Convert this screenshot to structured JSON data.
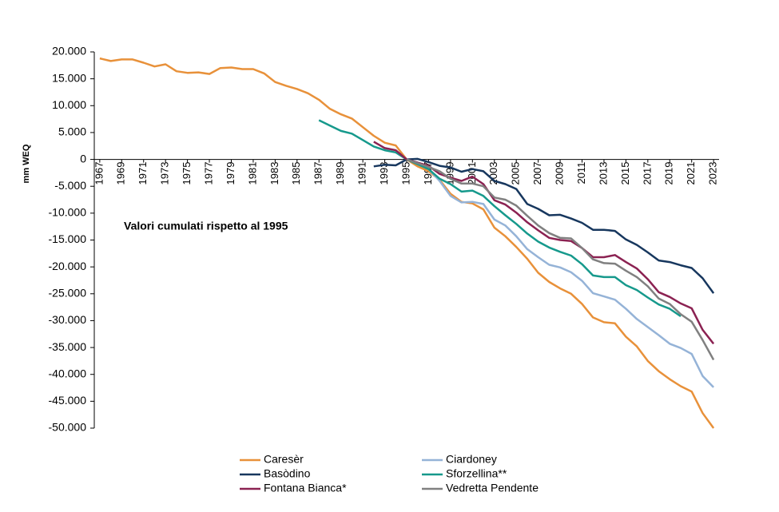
{
  "chart_data": {
    "type": "line",
    "annotation": "Valori cumulati rispetto al 1995",
    "y_label": "mm WEQ",
    "x": [
      1967,
      1968,
      1969,
      1970,
      1971,
      1972,
      1973,
      1974,
      1975,
      1976,
      1977,
      1978,
      1979,
      1980,
      1981,
      1982,
      1983,
      1984,
      1985,
      1986,
      1987,
      1988,
      1989,
      1990,
      1991,
      1992,
      1993,
      1994,
      1995,
      1996,
      1997,
      1998,
      1999,
      2000,
      2001,
      2002,
      2003,
      2004,
      2005,
      2006,
      2007,
      2008,
      2009,
      2010,
      2011,
      2012,
      2013,
      2014,
      2015,
      2016,
      2017,
      2018,
      2019,
      2020,
      2021,
      2022,
      2023
    ],
    "xlim": [
      1966.5,
      2023.5
    ],
    "xticks": [
      1967,
      1969,
      1971,
      1973,
      1975,
      1977,
      1979,
      1981,
      1983,
      1985,
      1987,
      1989,
      1991,
      1993,
      1995,
      1997,
      1999,
      2001,
      2003,
      2005,
      2007,
      2009,
      2011,
      2013,
      2015,
      2017,
      2019,
      2021,
      2023
    ],
    "ylim": [
      -50000,
      20000
    ],
    "yticks": [
      {
        "value": 20000,
        "label": "20.000"
      },
      {
        "value": 15000,
        "label": "15.000"
      },
      {
        "value": 10000,
        "label": "10.000"
      },
      {
        "value": 5000,
        "label": "5.000"
      },
      0,
      {
        "value": -5000,
        "label": "-5.000"
      },
      {
        "value": -10000,
        "label": "-10.000"
      },
      {
        "value": -15000,
        "label": "-15.000"
      },
      {
        "value": -20000,
        "label": "-20.000"
      },
      {
        "value": -25000,
        "label": "-25.000"
      },
      {
        "value": -30000,
        "label": "-30.000"
      },
      {
        "value": -35000,
        "label": "-35.000"
      },
      {
        "value": -40000,
        "label": "-40.000"
      },
      {
        "value": -45000,
        "label": "-45.000"
      },
      {
        "value": -50000,
        "label": "-50.000"
      }
    ],
    "grid": false,
    "legend": "bottom",
    "series": [
      {
        "name": "Caresèr",
        "color": "#e8913a",
        "values": [
          18800,
          18300,
          18600,
          18600,
          18000,
          17300,
          17700,
          16400,
          16100,
          16200,
          15900,
          17000,
          17100,
          16800,
          16800,
          16000,
          14400,
          13700,
          13100,
          12300,
          11100,
          9400,
          8400,
          7600,
          6000,
          4400,
          3100,
          2600,
          0,
          -1300,
          -2200,
          -3800,
          -6400,
          -7900,
          -8200,
          -9300,
          -12700,
          -14300,
          -16300,
          -18500,
          -21100,
          -22800,
          -24000,
          -25000,
          -26900,
          -29400,
          -30300,
          -30500,
          -33000,
          -34800,
          -37500,
          -39400,
          -40900,
          -42200,
          -43200,
          -47200,
          -50000
        ]
      },
      {
        "name": "Ciardoney",
        "color": "#95b3d7",
        "values": [
          null,
          null,
          null,
          null,
          null,
          null,
          null,
          null,
          null,
          null,
          null,
          null,
          null,
          null,
          null,
          null,
          null,
          null,
          null,
          null,
          null,
          null,
          null,
          null,
          null,
          null,
          null,
          null,
          0,
          -600,
          -1800,
          -4000,
          -6800,
          -8000,
          -7900,
          -8300,
          -11200,
          -12300,
          -14300,
          -16700,
          -18200,
          -19600,
          -20100,
          -21000,
          -22600,
          -24900,
          -25500,
          -26100,
          -27800,
          -29700,
          -31200,
          -32700,
          -34300,
          -35100,
          -36200,
          -40300,
          -42400
        ]
      },
      {
        "name": "Basòdino",
        "color": "#17375e",
        "values": [
          null,
          null,
          null,
          null,
          null,
          null,
          null,
          null,
          null,
          null,
          null,
          null,
          null,
          null,
          null,
          null,
          null,
          null,
          null,
          null,
          null,
          null,
          null,
          null,
          null,
          -1300,
          -1000,
          -1100,
          0,
          100,
          -500,
          -1200,
          -1500,
          -2300,
          -1800,
          -2200,
          -4000,
          -4600,
          -5500,
          -8300,
          -9200,
          -10400,
          -10300,
          -11000,
          -11800,
          -13100,
          -13100,
          -13300,
          -14900,
          -15900,
          -17300,
          -18800,
          -19100,
          -19700,
          -20200,
          -22100,
          -24900
        ]
      },
      {
        "name": "Sforzellina**",
        "color": "#16998c",
        "values": [
          null,
          null,
          null,
          null,
          null,
          null,
          null,
          null,
          null,
          null,
          null,
          null,
          null,
          null,
          null,
          null,
          null,
          null,
          null,
          null,
          7300,
          6300,
          5300,
          4800,
          3600,
          2400,
          1700,
          1300,
          0,
          -900,
          -1800,
          -3600,
          -4600,
          -6000,
          -5800,
          -6800,
          -8700,
          -10400,
          -12000,
          -13800,
          -15300,
          -16400,
          -17200,
          -17900,
          -19500,
          -21600,
          -21900,
          -21900,
          -23400,
          -24300,
          -25700,
          -27000,
          -27800,
          -29200,
          null,
          null,
          null
        ]
      },
      {
        "name": "Fontana Bianca*",
        "color": "#8b2252",
        "values": [
          null,
          null,
          null,
          null,
          null,
          null,
          null,
          null,
          null,
          null,
          null,
          null,
          null,
          null,
          null,
          null,
          null,
          null,
          null,
          null,
          null,
          null,
          null,
          null,
          null,
          3300,
          2100,
          1700,
          0,
          -600,
          -1200,
          -2700,
          -3400,
          -4000,
          -3200,
          -4600,
          -7600,
          -8400,
          -9900,
          -11700,
          -13200,
          -14600,
          -15000,
          -15200,
          -16500,
          -18200,
          -18200,
          -17800,
          -19100,
          -20300,
          -22300,
          -24700,
          -25600,
          -26800,
          -27700,
          -31700,
          -34300
        ]
      },
      {
        "name": "Vedretta Pendente",
        "color": "#808080",
        "values": [
          null,
          null,
          null,
          null,
          null,
          null,
          null,
          null,
          null,
          null,
          null,
          null,
          null,
          null,
          null,
          null,
          null,
          null,
          null,
          null,
          null,
          null,
          null,
          null,
          null,
          null,
          null,
          null,
          0,
          -700,
          -1400,
          -2200,
          -3600,
          -4500,
          -4500,
          -5000,
          -7100,
          -7500,
          -8600,
          -10500,
          -12300,
          -13700,
          -14600,
          -14700,
          -16500,
          -18600,
          -19300,
          -19400,
          -20700,
          -21900,
          -23600,
          -25900,
          -26900,
          -28800,
          -30200,
          -33600,
          -37300
        ]
      }
    ]
  }
}
